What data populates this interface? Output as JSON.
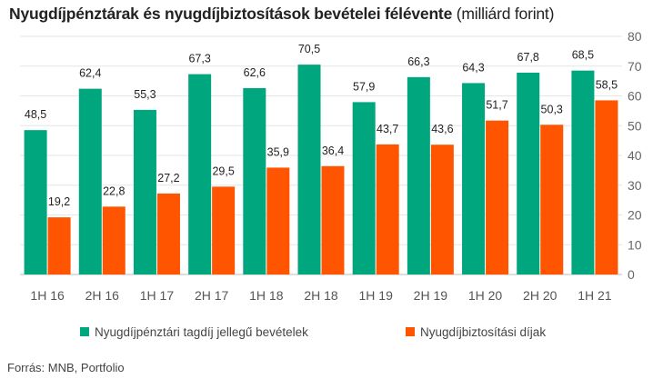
{
  "title": "Nyugdíjpénztárak és nyugdíjbiztosítások bevételei félévente",
  "subtitle": "(milliárd forint)",
  "source": "Forrás: MNB, Portfolio",
  "chart_data": {
    "type": "bar",
    "categories": [
      "1H 16",
      "2H 16",
      "1H 17",
      "2H 17",
      "1H 18",
      "2H 18",
      "1H 19",
      "2H 19",
      "1H 20",
      "2H 20",
      "1H 21"
    ],
    "series": [
      {
        "name": "Nyugdíjpénztári tagdíj jellegű bevételek",
        "color": "#00A67E",
        "values": [
          48.5,
          62.4,
          55.3,
          67.3,
          62.6,
          70.5,
          57.9,
          66.3,
          64.3,
          67.8,
          68.5
        ],
        "labels": [
          "48,5",
          "62,4",
          "55,3",
          "67,3",
          "62,6",
          "70,5",
          "57,9",
          "66,3",
          "64,3",
          "67,8",
          "68,5"
        ]
      },
      {
        "name": "Nyugdíjbiztosítási díjak",
        "color": "#FF5500",
        "values": [
          19.2,
          22.8,
          27.2,
          29.5,
          35.9,
          36.4,
          43.7,
          43.6,
          51.7,
          50.3,
          58.5
        ],
        "labels": [
          "19,2",
          "22,8",
          "27,2",
          "29,5",
          "35,9",
          "36,4",
          "43,7",
          "43,6",
          "51,7",
          "50,3",
          "58,5"
        ]
      }
    ],
    "yaxis": {
      "position": "right",
      "ylim": [
        0,
        80
      ],
      "ticks": [
        0,
        10,
        20,
        30,
        40,
        50,
        60,
        70,
        80
      ]
    },
    "grid": true,
    "legend": "bottom"
  }
}
